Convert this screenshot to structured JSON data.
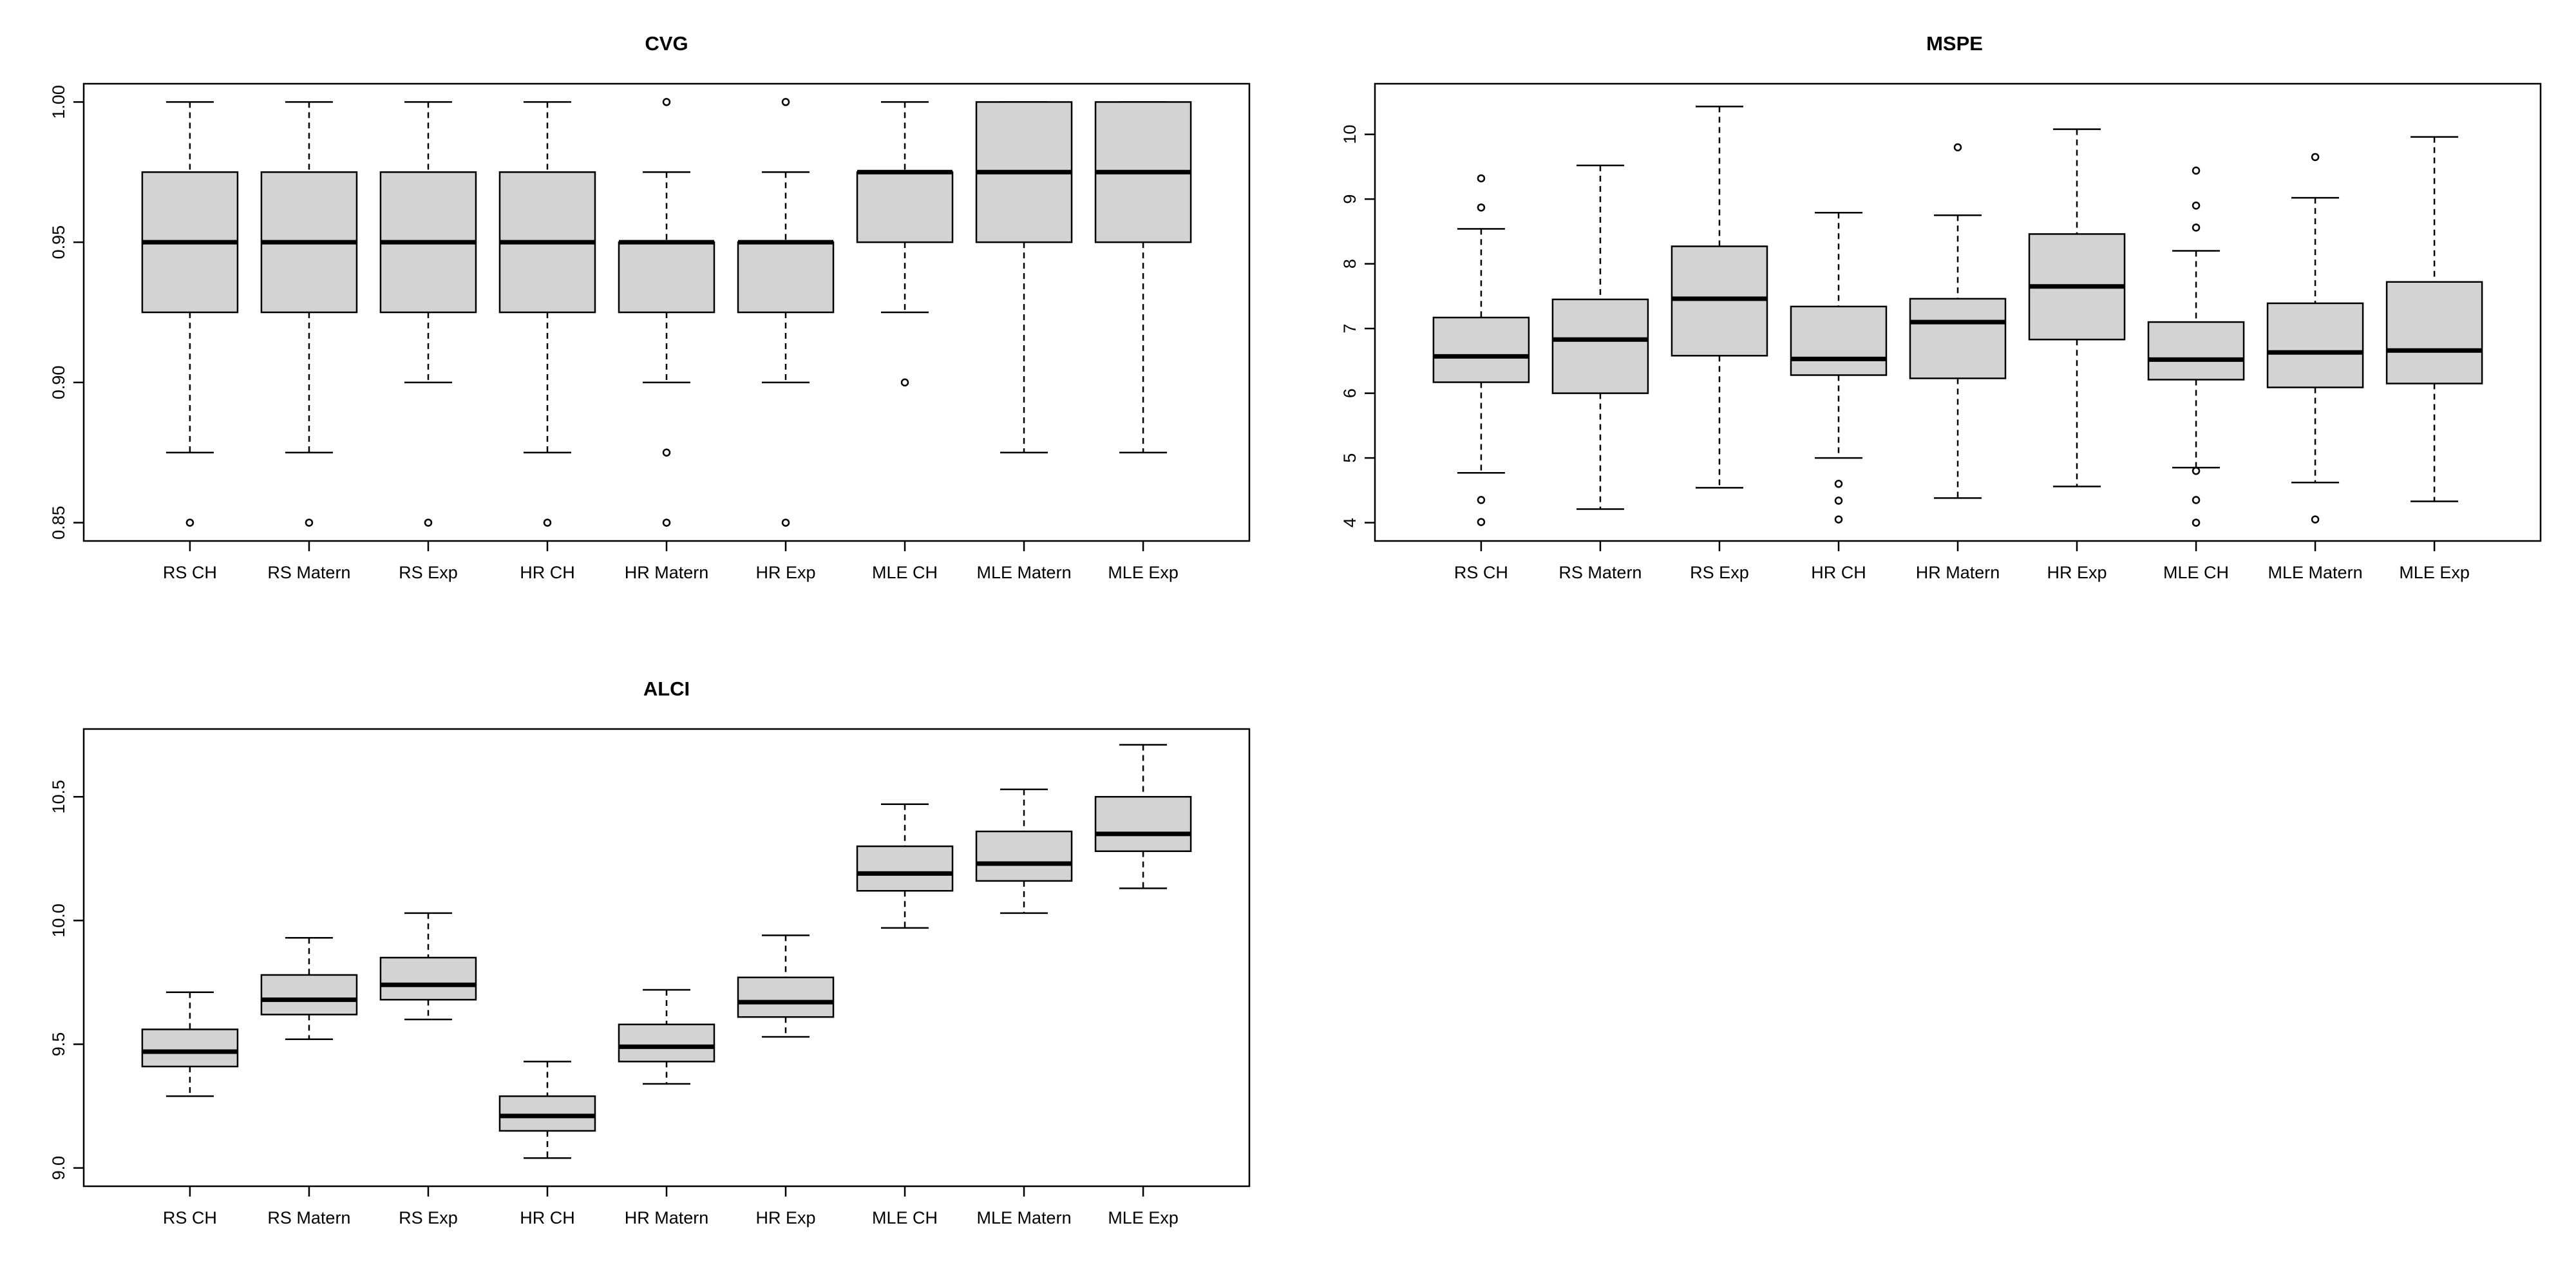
{
  "chart_data": [
    {
      "type": "boxplot",
      "title": "CVG",
      "xlabel": "",
      "ylabel": "",
      "ylim": [
        0.85,
        1.0
      ],
      "yticks": [
        0.85,
        0.9,
        0.95,
        1.0
      ],
      "ytick_labels": [
        "0.85",
        "0.90",
        "0.95",
        "1.00"
      ],
      "categories": [
        "RS CH",
        "RS Matern",
        "RS Exp",
        "HR CH",
        "HR Matern",
        "HR Exp",
        "MLE CH",
        "MLE Matern",
        "MLE Exp"
      ],
      "boxes": [
        {
          "whislo": 0.875,
          "q1": 0.925,
          "med": 0.95,
          "q3": 0.975,
          "whishi": 1.0,
          "fliers": [
            0.85
          ]
        },
        {
          "whislo": 0.875,
          "q1": 0.925,
          "med": 0.95,
          "q3": 0.975,
          "whishi": 1.0,
          "fliers": [
            0.85
          ]
        },
        {
          "whislo": 0.9,
          "q1": 0.925,
          "med": 0.95,
          "q3": 0.975,
          "whishi": 1.0,
          "fliers": [
            0.85
          ]
        },
        {
          "whislo": 0.875,
          "q1": 0.925,
          "med": 0.95,
          "q3": 0.975,
          "whishi": 1.0,
          "fliers": [
            0.85
          ]
        },
        {
          "whislo": 0.9,
          "q1": 0.925,
          "med": 0.95,
          "q3": 0.95,
          "whishi": 0.975,
          "fliers": [
            1.0,
            0.875,
            0.85
          ]
        },
        {
          "whislo": 0.9,
          "q1": 0.925,
          "med": 0.95,
          "q3": 0.95,
          "whishi": 0.975,
          "fliers": [
            1.0,
            0.85
          ]
        },
        {
          "whislo": 0.925,
          "q1": 0.95,
          "med": 0.975,
          "q3": 0.975,
          "whishi": 1.0,
          "fliers": [
            0.9
          ]
        },
        {
          "whislo": 0.875,
          "q1": 0.95,
          "med": 0.975,
          "q3": 1.0,
          "whishi": 1.0,
          "fliers": []
        },
        {
          "whislo": 0.875,
          "q1": 0.95,
          "med": 0.975,
          "q3": 1.0,
          "whishi": 1.0,
          "fliers": []
        }
      ]
    },
    {
      "type": "boxplot",
      "title": "MSPE",
      "xlabel": "",
      "ylabel": "",
      "ylim": [
        4,
        10.5
      ],
      "yticks": [
        4,
        5,
        6,
        7,
        8,
        9,
        10
      ],
      "ytick_labels": [
        "4",
        "5",
        "6",
        "7",
        "8",
        "9",
        "10"
      ],
      "categories": [
        "RS CH",
        "RS Matern",
        "RS Exp",
        "HR CH",
        "HR Matern",
        "HR Exp",
        "MLE CH",
        "MLE Matern",
        "MLE Exp"
      ],
      "boxes": [
        {
          "whislo": 4.77,
          "q1": 6.17,
          "med": 6.57,
          "q3": 7.17,
          "whishi": 8.54,
          "fliers": [
            9.32,
            8.87,
            4.35,
            4.01
          ]
        },
        {
          "whislo": 4.21,
          "q1": 6.0,
          "med": 6.83,
          "q3": 7.45,
          "whishi": 9.52,
          "fliers": []
        },
        {
          "whislo": 4.54,
          "q1": 6.58,
          "med": 7.46,
          "q3": 8.27,
          "whishi": 10.43,
          "fliers": []
        },
        {
          "whislo": 5.0,
          "q1": 6.28,
          "med": 6.53,
          "q3": 7.34,
          "whishi": 8.79,
          "fliers": [
            4.6,
            4.34,
            4.05
          ]
        },
        {
          "whislo": 4.38,
          "q1": 6.23,
          "med": 7.1,
          "q3": 7.46,
          "whishi": 8.75,
          "fliers": [
            9.8
          ]
        },
        {
          "whislo": 4.56,
          "q1": 6.83,
          "med": 7.65,
          "q3": 8.46,
          "whishi": 10.08,
          "fliers": []
        },
        {
          "whislo": 4.85,
          "q1": 6.21,
          "med": 6.52,
          "q3": 7.1,
          "whishi": 8.2,
          "fliers": [
            9.44,
            8.9,
            8.56,
            4.8,
            4.35,
            4.0
          ]
        },
        {
          "whislo": 4.62,
          "q1": 6.09,
          "med": 6.63,
          "q3": 7.39,
          "whishi": 9.02,
          "fliers": [
            9.65,
            4.05
          ]
        },
        {
          "whislo": 4.33,
          "q1": 6.15,
          "med": 6.66,
          "q3": 7.72,
          "whishi": 9.96,
          "fliers": []
        }
      ]
    },
    {
      "type": "boxplot",
      "title": "ALCI",
      "xlabel": "",
      "ylabel": "",
      "ylim": [
        9.0,
        10.7
      ],
      "yticks": [
        9.0,
        9.5,
        10.0,
        10.5
      ],
      "ytick_labels": [
        "9.0",
        "9.5",
        "10.0",
        "10.5"
      ],
      "categories": [
        "RS CH",
        "RS Matern",
        "RS Exp",
        "HR CH",
        "HR Matern",
        "HR Exp",
        "MLE CH",
        "MLE Matern",
        "MLE Exp"
      ],
      "boxes": [
        {
          "whislo": 9.29,
          "q1": 9.41,
          "med": 9.47,
          "q3": 9.56,
          "whishi": 9.71,
          "fliers": []
        },
        {
          "whislo": 9.52,
          "q1": 9.62,
          "med": 9.68,
          "q3": 9.78,
          "whishi": 9.93,
          "fliers": []
        },
        {
          "whislo": 9.6,
          "q1": 9.68,
          "med": 9.74,
          "q3": 9.85,
          "whishi": 10.03,
          "fliers": []
        },
        {
          "whislo": 9.04,
          "q1": 9.15,
          "med": 9.21,
          "q3": 9.29,
          "whishi": 9.43,
          "fliers": []
        },
        {
          "whislo": 9.34,
          "q1": 9.43,
          "med": 9.49,
          "q3": 9.58,
          "whishi": 9.72,
          "fliers": []
        },
        {
          "whislo": 9.53,
          "q1": 9.61,
          "med": 9.67,
          "q3": 9.77,
          "whishi": 9.94,
          "fliers": []
        },
        {
          "whislo": 9.97,
          "q1": 10.12,
          "med": 10.19,
          "q3": 10.3,
          "whishi": 10.47,
          "fliers": []
        },
        {
          "whislo": 10.03,
          "q1": 10.16,
          "med": 10.23,
          "q3": 10.36,
          "whishi": 10.53,
          "fliers": []
        },
        {
          "whislo": 10.13,
          "q1": 10.28,
          "med": 10.35,
          "q3": 10.5,
          "whishi": 10.71,
          "fliers": []
        }
      ]
    }
  ]
}
